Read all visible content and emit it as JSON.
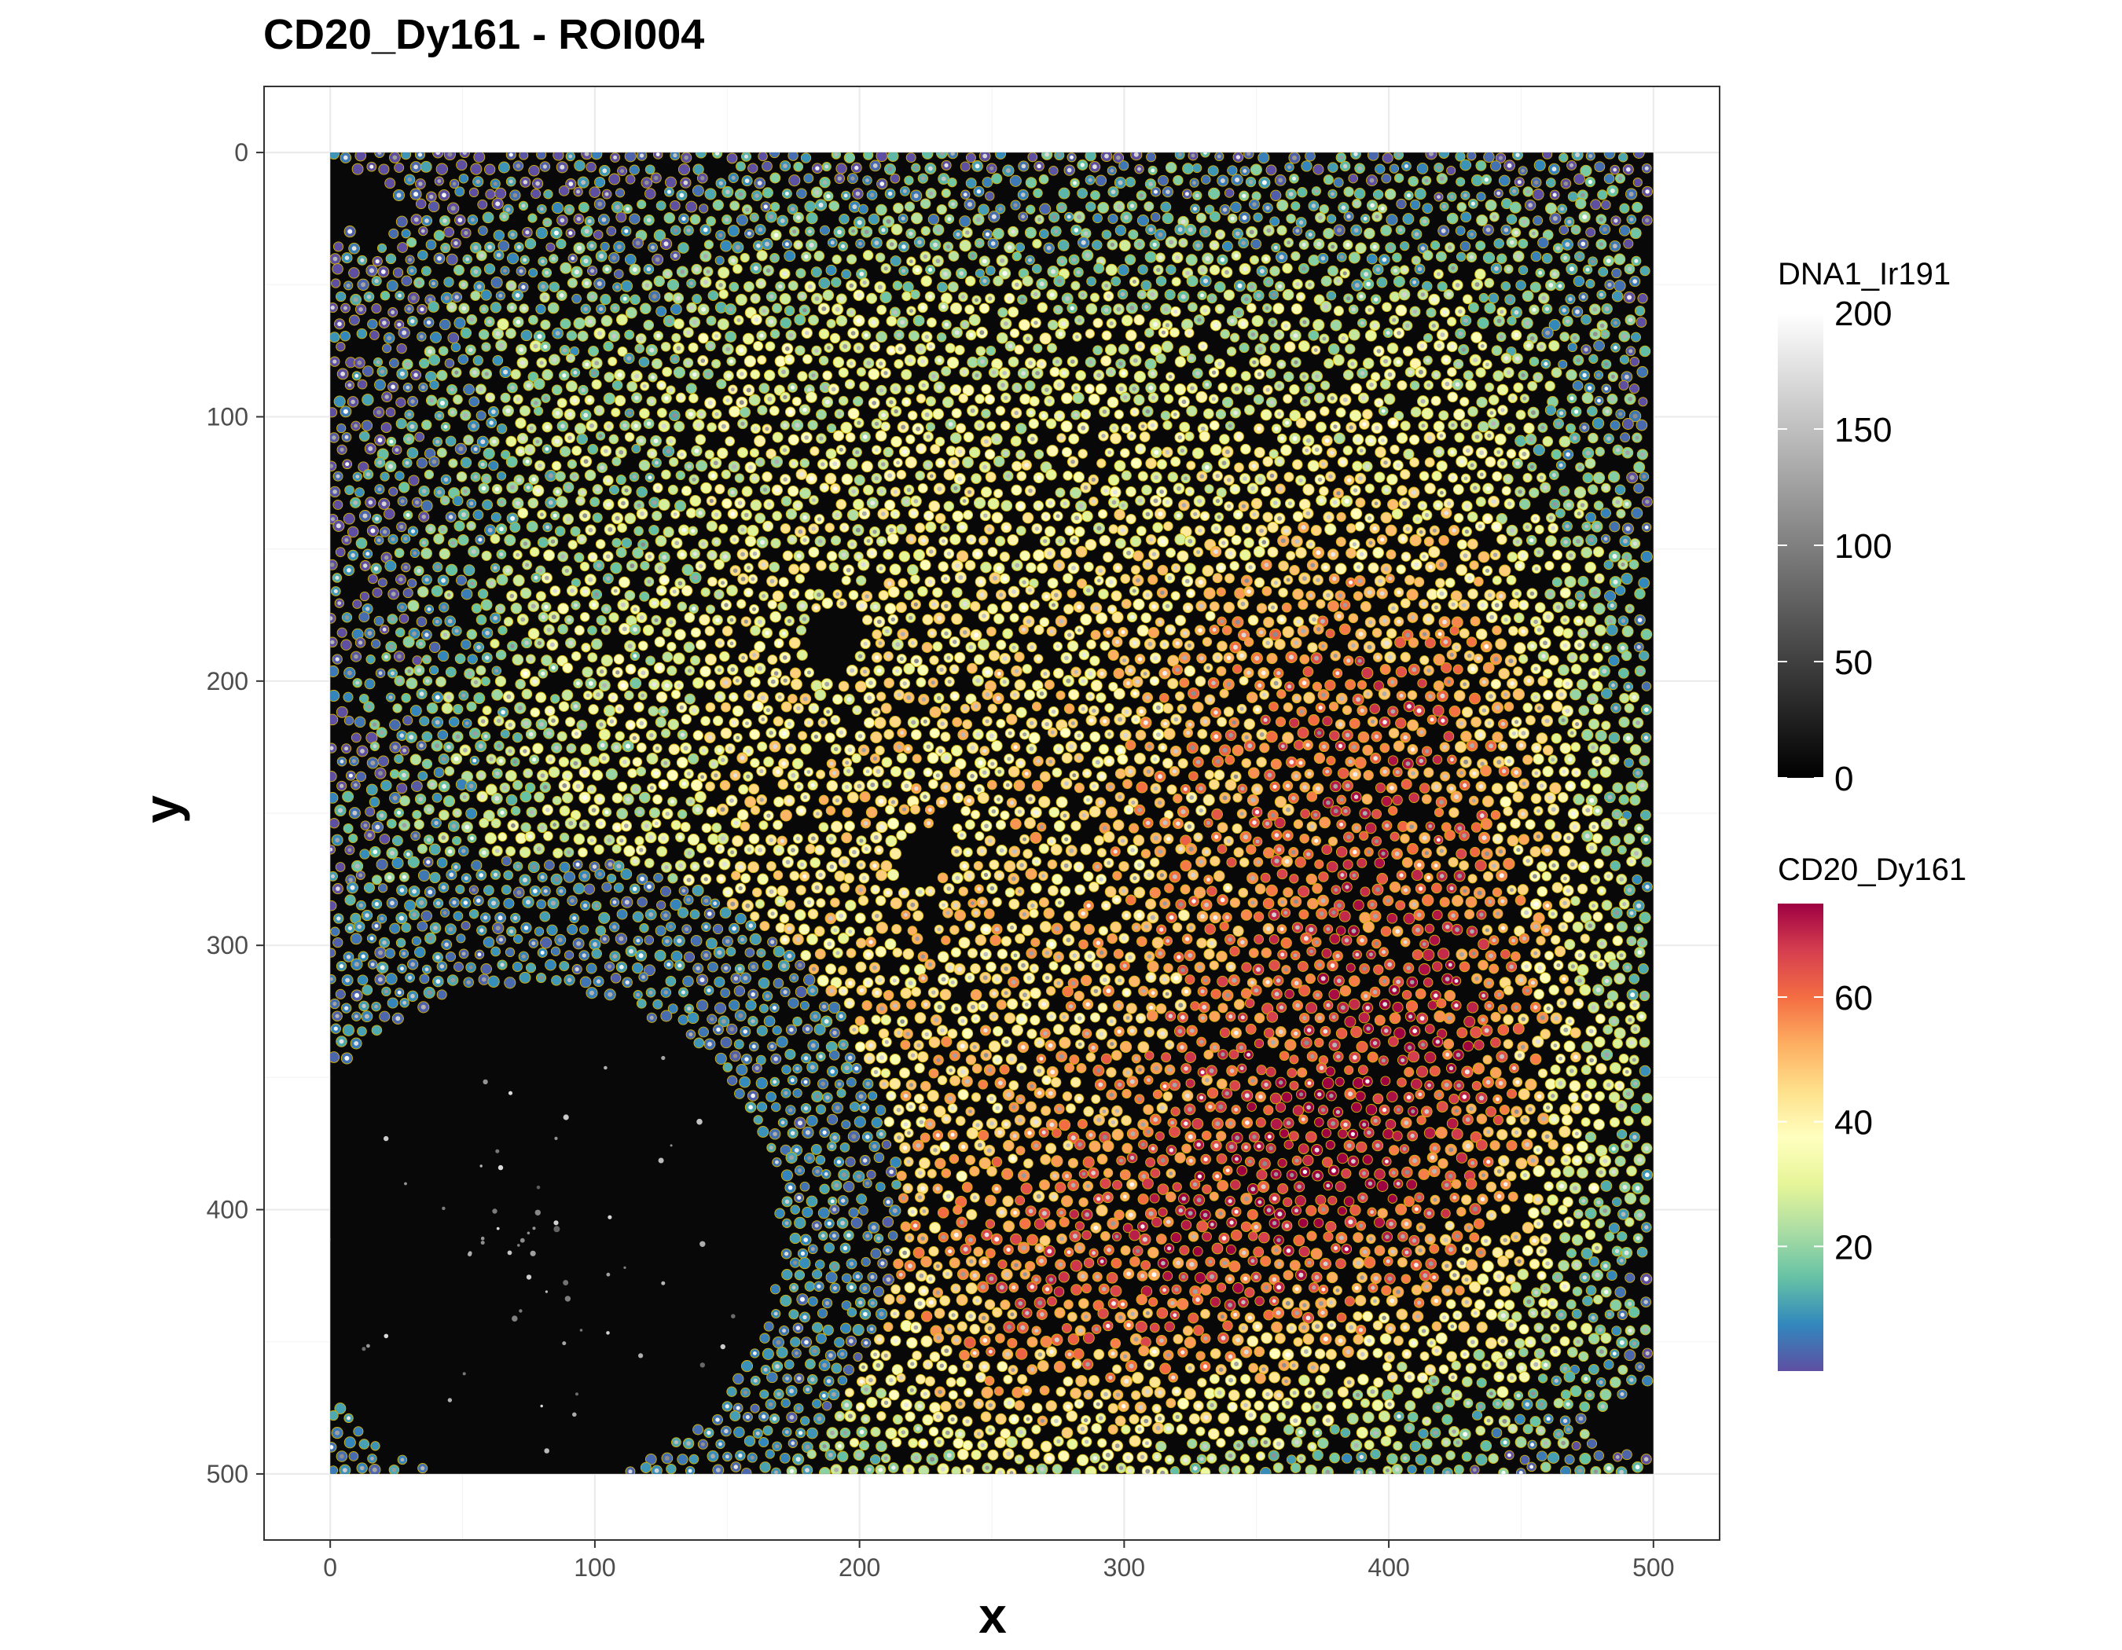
{
  "chart_data": {
    "type": "scatter",
    "title": "CD20_Dy161 - ROI004",
    "xlabel": "x",
    "ylabel": "y",
    "xlim": [
      -25,
      525
    ],
    "ylim": [
      -25,
      525
    ],
    "y_reversed": true,
    "x_ticks": [
      "0",
      "100",
      "200",
      "300",
      "400",
      "500"
    ],
    "y_ticks": [
      "0",
      "100",
      "200",
      "300",
      "400",
      "500"
    ],
    "grid": true,
    "background_image": {
      "channel": "DNA1_Ir191",
      "extent": [
        0,
        500,
        0,
        500
      ],
      "colormap": "grayscale",
      "range": [
        0,
        200
      ]
    },
    "cell_outline_color": "#d4b300",
    "point_color_channel": "CD20_Dy161",
    "point_colormap": "Spectral (reversed)",
    "point_color_range": [
      0,
      75
    ],
    "regions": {
      "high_expression_centers": [
        [
          400,
          210
        ],
        [
          420,
          330
        ],
        [
          370,
          400
        ],
        [
          270,
          460
        ]
      ],
      "low_expression_follicle": {
        "center": [
          80,
          400
        ],
        "description": "low CD20 region with dark core"
      },
      "empty_holes": [
        [
          190,
          185
        ],
        [
          225,
          265
        ],
        [
          65,
          420
        ]
      ]
    },
    "legends": [
      {
        "title": "DNA1_Ir191",
        "type": "continuous",
        "colors": [
          "#000000",
          "#ffffff"
        ],
        "ticks": [
          "0",
          "50",
          "100",
          "150",
          "200"
        ],
        "tick_values": [
          0,
          50,
          100,
          150,
          200
        ],
        "range": [
          0,
          200
        ]
      },
      {
        "title": "CD20_Dy161",
        "type": "continuous",
        "colors": [
          "#5e4fa2",
          "#3288bd",
          "#66c2a5",
          "#abdda4",
          "#e6f598",
          "#ffffbf",
          "#fee08b",
          "#fdae61",
          "#f46d43",
          "#d53e4f",
          "#9e0142"
        ],
        "ticks": [
          "20",
          "40",
          "60"
        ],
        "tick_values": [
          20,
          40,
          60
        ],
        "range": [
          0,
          75
        ]
      }
    ]
  }
}
